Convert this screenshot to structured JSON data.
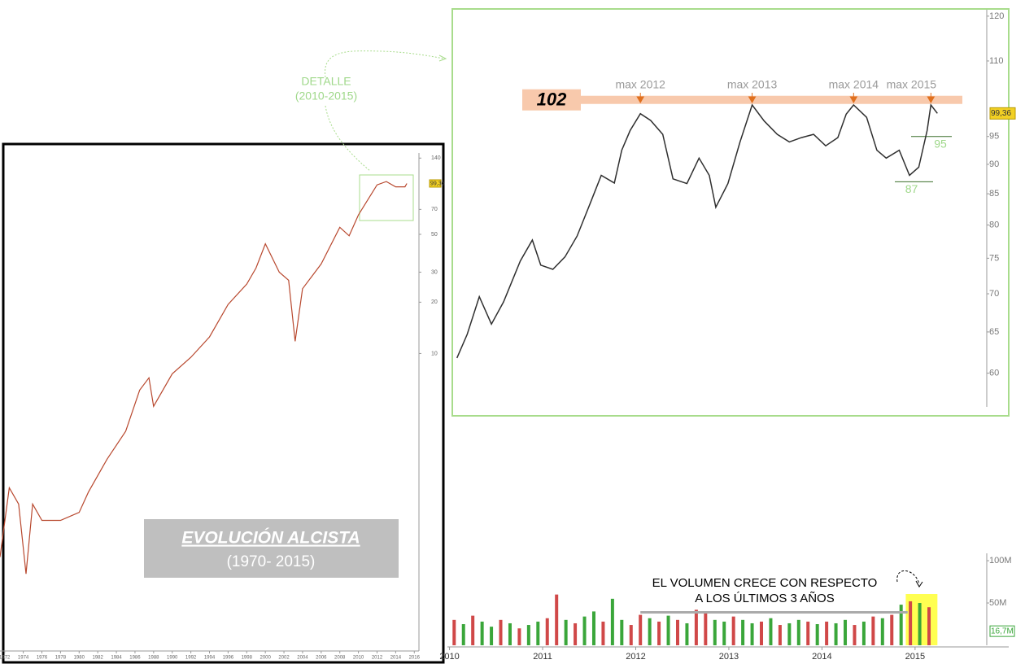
{
  "chart_data": [
    {
      "type": "line",
      "log": true,
      "title": "EVOLUCIÓN ALCISTA",
      "subtitle": "(1970- 2015)",
      "callout": [
        "DETALLE",
        "(2010-2015)"
      ],
      "xlim": [
        1971.5,
        2016.5
      ],
      "ylim": [
        0.18,
        150
      ],
      "xticks": [
        1972,
        1974,
        1976,
        1978,
        1980,
        1982,
        1984,
        1986,
        1988,
        1990,
        1992,
        1994,
        1996,
        1998,
        2000,
        2002,
        2004,
        2006,
        2008,
        2010,
        2012,
        2014,
        2016
      ],
      "yticks": [
        10,
        20,
        30,
        50,
        70,
        140
      ],
      "last_value": {
        "value": 99.36,
        "label": "99,36"
      },
      "series": [
        {
          "color": "#b8482e",
          "x": [
            1971.5,
            1972.5,
            1973.5,
            1974.3,
            1975,
            1976,
            1978,
            1980,
            1981,
            1983,
            1985,
            1986.5,
            1987.5,
            1988,
            1990,
            1992,
            1994,
            1996,
            1998,
            1999,
            2000,
            2001.5,
            2002.5,
            2003.2,
            2004,
            2006,
            2008,
            2009,
            2010,
            2012,
            2013,
            2014,
            2015,
            2015.2
          ],
          "values": [
            0.64,
            1.63,
            1.31,
            0.51,
            1.31,
            1.05,
            1.05,
            1.17,
            1.54,
            2.4,
            3.5,
            6.1,
            7.2,
            4.9,
            7.6,
            9.5,
            12.5,
            19.4,
            25.5,
            31.7,
            44,
            30,
            26.9,
            11.8,
            24,
            33.5,
            55,
            49,
            65,
            97.5,
            102,
            95,
            95,
            99.36
          ]
        }
      ]
    },
    {
      "type": "line",
      "log": true,
      "xlim": [
        2010.03,
        2015.77
      ],
      "ylim": [
        56.2,
        121.5
      ],
      "yticks": [
        60,
        65,
        70,
        75,
        80,
        85,
        90,
        95,
        110,
        120
      ],
      "last_value": {
        "value": 99.36,
        "label": "99,36"
      },
      "levels": [
        102,
        95,
        87
      ],
      "annotations": [
        {
          "text": "max 2012",
          "x": 2012.05
        },
        {
          "text": "max 2013",
          "x": 2013.25
        },
        {
          "text": "max 2014",
          "x": 2014.34
        },
        {
          "text": "max 2015",
          "x": 2015.17
        }
      ],
      "series": [
        {
          "color": "#2f2f2f",
          "x": [
            2010.08,
            2010.19,
            2010.32,
            2010.45,
            2010.58,
            2010.76,
            2010.89,
            2010.98,
            2011.11,
            2011.24,
            2011.37,
            2011.51,
            2011.63,
            2011.77,
            2011.85,
            2011.94,
            2012.05,
            2012.16,
            2012.29,
            2012.4,
            2012.55,
            2012.68,
            2012.79,
            2012.86,
            2012.99,
            2013.12,
            2013.25,
            2013.38,
            2013.52,
            2013.65,
            2013.78,
            2013.91,
            2014.04,
            2014.17,
            2014.26,
            2014.34,
            2014.48,
            2014.59,
            2014.69,
            2014.83,
            2014.94,
            2015.04,
            2015.13,
            2015.17,
            2015.24
          ],
          "values": [
            61.8,
            64.7,
            69.6,
            66,
            68.9,
            74.6,
            77.7,
            74,
            73.4,
            75.2,
            78.3,
            83.4,
            88.1,
            86.8,
            92.5,
            96.1,
            99.3,
            98,
            95.4,
            87.5,
            86.7,
            91.1,
            88.1,
            82.8,
            86.7,
            94,
            101,
            97.9,
            95.4,
            94,
            94.8,
            95.4,
            93.3,
            94.8,
            99.2,
            101,
            98.6,
            92.5,
            91.1,
            92.5,
            88.1,
            89.5,
            96.1,
            101,
            99.36
          ]
        }
      ]
    },
    {
      "type": "bar",
      "xlim": [
        2010.03,
        2015.77
      ],
      "ylim": [
        0,
        108.7
      ],
      "xticks": [
        2010,
        2011,
        2012,
        2013,
        2014,
        2015
      ],
      "yticks": [
        {
          "value": 50,
          "label": "50M"
        },
        {
          "value": 100,
          "label": "100M"
        }
      ],
      "last_value": {
        "value": 16.7,
        "label": "16,7M"
      },
      "annotation": [
        "EL VOLUMEN CRECE CON RESPECTO",
        "A LOS ÚLTIMOS 3 AÑOS"
      ],
      "avg_line": {
        "value": 39,
        "x": [
          2012.05,
          2014.92
        ]
      },
      "highlight": [
        2014.9,
        2015.24
      ],
      "x": [
        2010.05,
        2010.15,
        2010.25,
        2010.35,
        2010.45,
        2010.55,
        2010.65,
        2010.75,
        2010.85,
        2010.95,
        2011.05,
        2011.15,
        2011.25,
        2011.35,
        2011.45,
        2011.55,
        2011.65,
        2011.75,
        2011.85,
        2011.95,
        2012.05,
        2012.15,
        2012.25,
        2012.35,
        2012.45,
        2012.55,
        2012.65,
        2012.75,
        2012.85,
        2012.95,
        2013.05,
        2013.15,
        2013.25,
        2013.35,
        2013.45,
        2013.55,
        2013.65,
        2013.75,
        2013.85,
        2013.95,
        2014.05,
        2014.15,
        2014.25,
        2014.35,
        2014.45,
        2014.55,
        2014.65,
        2014.75,
        2014.85,
        2014.95,
        2015.05,
        2015.15
      ],
      "values": [
        30,
        25,
        35,
        28,
        22,
        30,
        26,
        20,
        24,
        28,
        32,
        60,
        30,
        26,
        34,
        40,
        28,
        55,
        30,
        24,
        36,
        32,
        28,
        35,
        30,
        26,
        42,
        38,
        30,
        28,
        34,
        30,
        26,
        28,
        32,
        24,
        26,
        30,
        28,
        25,
        28,
        26,
        30,
        24,
        28,
        34,
        32,
        36,
        48,
        52,
        50,
        45
      ],
      "colors": [
        "#d04848",
        "#3aa63a",
        "#d04848",
        "#3aa63a",
        "#3aa63a",
        "#d04848",
        "#3aa63a",
        "#d04848",
        "#3aa63a",
        "#3aa63a",
        "#d04848",
        "#d04848",
        "#3aa63a",
        "#d04848",
        "#3aa63a",
        "#3aa63a",
        "#d04848",
        "#3aa63a",
        "#3aa63a",
        "#d04848",
        "#d04848",
        "#3aa63a",
        "#d04848",
        "#3aa63a",
        "#d04848",
        "#3aa63a",
        "#d04848",
        "#d04848",
        "#3aa63a",
        "#3aa63a",
        "#d04848",
        "#3aa63a",
        "#3aa63a",
        "#d04848",
        "#3aa63a",
        "#d04848",
        "#3aa63a",
        "#3aa63a",
        "#d04848",
        "#3aa63a",
        "#d04848",
        "#3aa63a",
        "#3aa63a",
        "#d04848",
        "#3aa63a",
        "#d04848",
        "#3aa63a",
        "#d04848",
        "#3aa63a",
        "#d04848",
        "#3aa63a",
        "#d04848"
      ]
    }
  ]
}
